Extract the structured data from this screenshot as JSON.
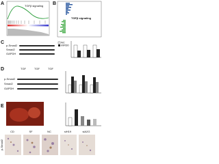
{
  "panels": [
    {
      "label": "A",
      "title": "TGFβ signaling"
    },
    {
      "label": "B",
      "title": "TGFβ signaling"
    },
    {
      "label": "C",
      "rows": [
        "p-Smad2",
        "Smad2",
        "GAPDH"
      ],
      "legend": [
        "NC",
        "miR30"
      ]
    },
    {
      "label": "D",
      "rows": [
        "p-Smad2",
        "Smad2",
        "GAPDH"
      ],
      "groups": [
        "TGF",
        "TGF",
        "TGF"
      ]
    },
    {
      "label": "E",
      "columns": [
        "CD",
        "SF",
        "NC",
        "siH19",
        "siA2G"
      ],
      "row": "p-Smad2"
    }
  ]
}
